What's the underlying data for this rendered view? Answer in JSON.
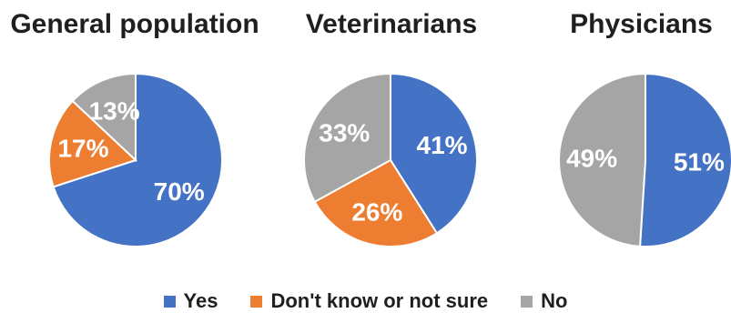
{
  "chart_data": [
    {
      "type": "pie",
      "title": "General population",
      "labels": [
        "Yes",
        "Don't know or not sure",
        "No"
      ],
      "values": [
        70,
        17,
        13
      ],
      "value_labels": [
        "70%",
        "17%",
        "13%"
      ]
    },
    {
      "type": "pie",
      "title": "Veterinarians",
      "labels": [
        "Yes",
        "Don't know or not sure",
        "No"
      ],
      "values": [
        41,
        26,
        33
      ],
      "value_labels": [
        "41%",
        "26%",
        "33%"
      ]
    },
    {
      "type": "pie",
      "title": "Physicians",
      "labels": [
        "Yes",
        "No"
      ],
      "values": [
        51,
        49
      ],
      "value_labels": [
        "51%",
        "49%"
      ]
    }
  ],
  "legend": {
    "placement": "bottom",
    "items": [
      {
        "label": "Yes",
        "color": "#4472C4"
      },
      {
        "label": "Don't know or not sure",
        "color": "#ED7D31"
      },
      {
        "label": "No",
        "color": "#A5A5A5"
      }
    ]
  }
}
